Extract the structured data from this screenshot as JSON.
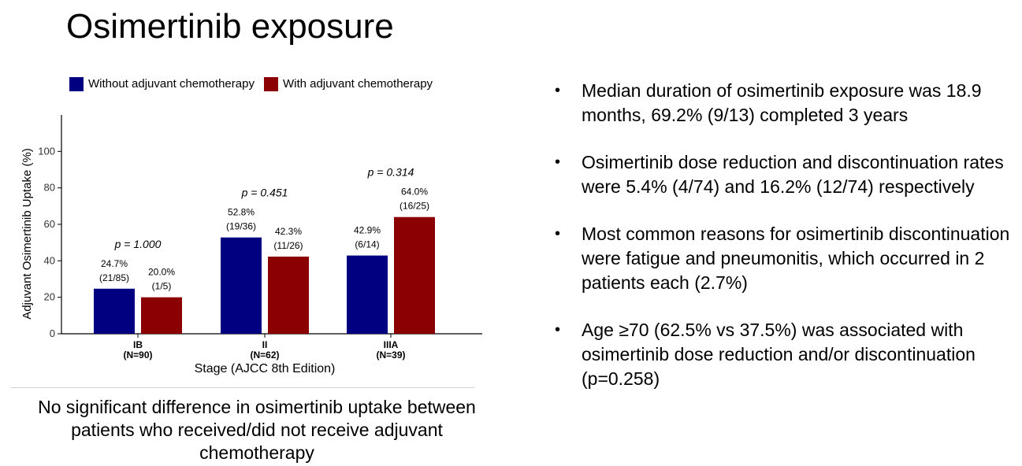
{
  "title": "Osimertinib exposure",
  "chart_data": {
    "type": "bar",
    "categories": [
      "IB",
      "II",
      "IIIA"
    ],
    "category_sublabels": [
      "(N=90)",
      "(N=62)",
      "(N=39)"
    ],
    "series": [
      {
        "name": "Without adjuvant chemotherapy",
        "color": "#000080",
        "values": [
          24.7,
          52.8,
          42.9
        ],
        "labels": [
          "24.7%",
          "52.8%",
          "42.9%"
        ],
        "counts": [
          "(21/85)",
          "(19/36)",
          "(6/14)"
        ]
      },
      {
        "name": "With adjuvant chemotherapy",
        "color": "#8B0000",
        "values": [
          20.0,
          42.3,
          64.0
        ],
        "labels": [
          "20.0%",
          "42.3%",
          "64.0%"
        ],
        "counts": [
          "(1/5)",
          "(11/26)",
          "(16/25)"
        ]
      }
    ],
    "p_values": [
      "p = 1.000",
      "p = 0.451",
      "p = 0.314"
    ],
    "xlabel": "Stage (AJCC 8th Edition)",
    "ylabel": "Adjuvant Osimertinib Uptake (%)",
    "ylim": [
      0,
      120
    ],
    "yticks": [
      0,
      20,
      40,
      60,
      80,
      100
    ],
    "legend_position": "top",
    "grid": false
  },
  "conclusion": "No significant difference in osimertinib uptake between patients who received/did not receive adjuvant chemotherapy",
  "bullets": [
    "Median duration of osimertinib exposure was 18.9 months, 69.2% (9/13) completed 3 years",
    "Osimertinib dose reduction and discontinuation rates were 5.4% (4/74) and 16.2% (12/74) respectively",
    "Most common reasons for osimertinib discontinuation were fatigue and pneumonitis, which occurred in 2 patients each (2.7%)",
    "Age ≥70 (62.5% vs 37.5%) was associated with osimertinib dose reduction and/or discontinuation (p=0.258)"
  ]
}
